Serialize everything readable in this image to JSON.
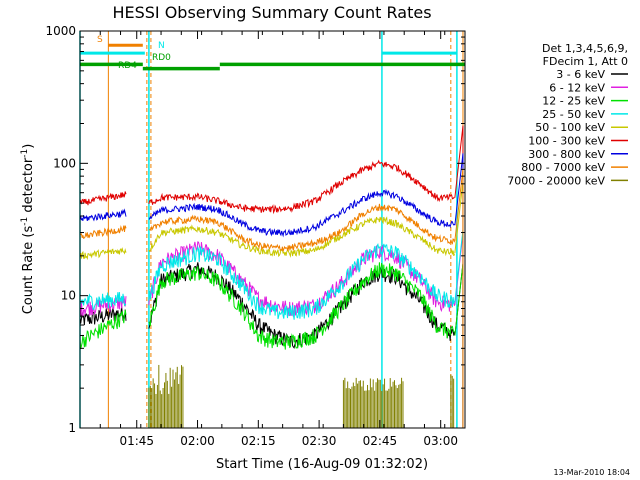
{
  "chart_data": {
    "type": "line",
    "title": "HESSI Observing Summary Count Rates",
    "xlabel": "Start Time (16-Aug-09 01:32:02)",
    "ylabel_main": "Count Rate (s",
    "ylabel_sup1": "-1",
    "ylabel_mid": " detector",
    "ylabel_sup2": "-1",
    "ylabel_end": ")",
    "yscale": "log",
    "xlim_minutes": [
      0,
      95
    ],
    "ylim": [
      1,
      1000
    ],
    "x_ticks": [
      {
        "t": 14,
        "label": "01:45"
      },
      {
        "t": 29,
        "label": "02:00"
      },
      {
        "t": 44,
        "label": "02:15"
      },
      {
        "t": 59,
        "label": "02:30"
      },
      {
        "t": 74,
        "label": "02:45"
      },
      {
        "t": 89,
        "label": "03:00"
      }
    ],
    "y_ticks": [
      {
        "v": 1,
        "label": "1"
      },
      {
        "v": 10,
        "label": "10"
      },
      {
        "v": 100,
        "label": "100"
      },
      {
        "v": 1000,
        "label": "1000"
      }
    ],
    "legend": {
      "placement": "right",
      "header": [
        "Det 1,3,4,5,6,9,",
        "FDecim 1, Att 0"
      ],
      "entries": [
        {
          "label": "3 - 6 keV",
          "color": "#000000"
        },
        {
          "label": "6 - 12 keV",
          "color": "#e020e0"
        },
        {
          "label": "12 - 25 keV",
          "color": "#00e000"
        },
        {
          "label": "25 - 50 keV",
          "color": "#00e8e8"
        },
        {
          "label": "50 - 100 keV",
          "color": "#c8c800"
        },
        {
          "label": "100 - 300 keV",
          "color": "#e00000"
        },
        {
          "label": "300 - 800 keV",
          "color": "#0000e0"
        },
        {
          "label": "800 - 7000 keV",
          "color": "#f08000"
        },
        {
          "label": "7000 - 20000 keV",
          "color": "#808000"
        }
      ]
    },
    "segment_times": {
      "seg1": [
        0,
        11.5
      ],
      "gap": [
        11.5,
        17
      ],
      "seg2": [
        17,
        92.5
      ],
      "spike": 94.5
    },
    "series": [
      {
        "label": "3 - 6 keV",
        "color": "#000000",
        "seg1": [
          [
            0,
            6.5
          ],
          [
            11,
            7.5
          ]
        ],
        "seg2": [
          [
            17,
            6
          ],
          [
            20,
            13
          ],
          [
            29,
            16
          ],
          [
            34,
            14
          ],
          [
            40,
            9
          ],
          [
            44,
            6
          ],
          [
            48,
            5
          ],
          [
            52,
            4.5
          ],
          [
            58,
            5
          ],
          [
            64,
            8
          ],
          [
            70,
            13
          ],
          [
            74,
            15
          ],
          [
            78,
            14
          ],
          [
            84,
            9
          ],
          [
            88,
            6
          ],
          [
            92.5,
            5
          ]
        ]
      },
      {
        "label": "6 - 12 keV",
        "color": "#e020e0",
        "seg1": [
          [
            0,
            8
          ],
          [
            11,
            9
          ]
        ],
        "seg2": [
          [
            17,
            9
          ],
          [
            20,
            18
          ],
          [
            29,
            23
          ],
          [
            34,
            20
          ],
          [
            40,
            13
          ],
          [
            44,
            9.5
          ],
          [
            48,
            8.5
          ],
          [
            52,
            8
          ],
          [
            58,
            8.5
          ],
          [
            64,
            12
          ],
          [
            70,
            19
          ],
          [
            74,
            22
          ],
          [
            78,
            20
          ],
          [
            84,
            13
          ],
          [
            88,
            9
          ],
          [
            92.5,
            8.5
          ]
        ]
      },
      {
        "label": "12 - 25 keV",
        "color": "#00e000",
        "seg1": [
          [
            0,
            4.5
          ],
          [
            11,
            7
          ]
        ],
        "seg2": [
          [
            17,
            6
          ],
          [
            20,
            13
          ],
          [
            29,
            15
          ],
          [
            34,
            13
          ],
          [
            40,
            8
          ],
          [
            44,
            5
          ],
          [
            48,
            4.5
          ],
          [
            52,
            4.5
          ],
          [
            58,
            5
          ],
          [
            64,
            8
          ],
          [
            70,
            13
          ],
          [
            74,
            16
          ],
          [
            78,
            15
          ],
          [
            84,
            10
          ],
          [
            88,
            6
          ],
          [
            92.5,
            5
          ]
        ]
      },
      {
        "label": "25 - 50 keV",
        "color": "#00e8e8",
        "seg1": [
          [
            0,
            9
          ],
          [
            11,
            9.5
          ]
        ],
        "seg2": [
          [
            17,
            9.5
          ],
          [
            20,
            17
          ],
          [
            29,
            21
          ],
          [
            34,
            19
          ],
          [
            40,
            12
          ],
          [
            44,
            8.5
          ],
          [
            48,
            7.5
          ],
          [
            52,
            7.5
          ],
          [
            58,
            8
          ],
          [
            64,
            12
          ],
          [
            70,
            19
          ],
          [
            74,
            23
          ],
          [
            78,
            21
          ],
          [
            84,
            14
          ],
          [
            88,
            10
          ],
          [
            92.5,
            9
          ]
        ]
      },
      {
        "label": "50 - 100 keV",
        "color": "#c8c800",
        "seg1": [
          [
            0,
            20
          ],
          [
            11,
            22
          ]
        ],
        "seg2": [
          [
            17,
            22
          ],
          [
            20,
            30
          ],
          [
            29,
            32
          ],
          [
            34,
            30
          ],
          [
            40,
            24
          ],
          [
            44,
            22
          ],
          [
            48,
            21
          ],
          [
            52,
            21
          ],
          [
            58,
            22
          ],
          [
            64,
            28
          ],
          [
            70,
            35
          ],
          [
            74,
            38
          ],
          [
            78,
            35
          ],
          [
            84,
            27
          ],
          [
            88,
            22
          ],
          [
            92.5,
            21
          ]
        ]
      },
      {
        "label": "100 - 300 keV",
        "color": "#e00000",
        "seg1": [
          [
            0,
            50
          ],
          [
            11,
            58
          ]
        ],
        "seg2": [
          [
            17,
            50
          ],
          [
            20,
            55
          ],
          [
            29,
            56
          ],
          [
            34,
            52
          ],
          [
            40,
            46
          ],
          [
            44,
            45
          ],
          [
            48,
            45
          ],
          [
            52,
            46
          ],
          [
            58,
            52
          ],
          [
            64,
            70
          ],
          [
            70,
            90
          ],
          [
            74,
            100
          ],
          [
            78,
            94
          ],
          [
            84,
            70
          ],
          [
            88,
            55
          ],
          [
            92.5,
            55
          ]
        ]
      },
      {
        "label": "300 - 800 keV",
        "color": "#0000e0",
        "seg1": [
          [
            0,
            38
          ],
          [
            11,
            42
          ]
        ],
        "seg2": [
          [
            17,
            38
          ],
          [
            20,
            44
          ],
          [
            29,
            47
          ],
          [
            34,
            45
          ],
          [
            40,
            35
          ],
          [
            44,
            31
          ],
          [
            48,
            30
          ],
          [
            52,
            30
          ],
          [
            58,
            33
          ],
          [
            64,
            42
          ],
          [
            70,
            54
          ],
          [
            74,
            60
          ],
          [
            78,
            57
          ],
          [
            84,
            43
          ],
          [
            88,
            36
          ],
          [
            92.5,
            34
          ]
        ]
      },
      {
        "label": "800 - 7000 keV",
        "color": "#f08000",
        "seg1": [
          [
            0,
            28
          ],
          [
            11,
            32
          ]
        ],
        "seg2": [
          [
            17,
            30
          ],
          [
            20,
            36
          ],
          [
            29,
            38
          ],
          [
            34,
            36
          ],
          [
            40,
            27
          ],
          [
            44,
            24
          ],
          [
            48,
            23
          ],
          [
            52,
            23
          ],
          [
            58,
            25
          ],
          [
            64,
            30
          ],
          [
            70,
            42
          ],
          [
            74,
            47
          ],
          [
            78,
            45
          ],
          [
            84,
            33
          ],
          [
            88,
            27
          ],
          [
            92.5,
            26
          ]
        ]
      },
      {
        "label": "7000 - 20000 keV",
        "color": "#808000",
        "bursts": [
          [
            17,
            25.5,
            1.8,
            3
          ],
          [
            65,
            80,
            1.9,
            2.4
          ],
          [
            91.5,
            92.5,
            1.8,
            2.6
          ]
        ]
      }
    ],
    "annotations": [
      {
        "label": "S",
        "color": "#f08000",
        "bar_minutes": [
          7,
          15.5
        ],
        "value": 780
      },
      {
        "label": "N",
        "color": "#00e8e8",
        "bar_minutes": [
          0,
          16
        ],
        "value": 680
      },
      {
        "label": "RD0",
        "color": "#00a000",
        "value": 600
      },
      {
        "label": "RD4",
        "color": "#00a000",
        "value": 520
      }
    ],
    "night_bars_minutes": [
      0,
      17,
      74.5,
      93
    ],
    "saa_lines_minutes": [
      7,
      16.5,
      17.5,
      91.5,
      94.5
    ],
    "rd_line_segments": [
      [
        0,
        15.5,
        560
      ],
      [
        15.5,
        34.5,
        520
      ],
      [
        34.5,
        95,
        560
      ]
    ],
    "footer_date": "13-Mar-2010 18:04"
  }
}
